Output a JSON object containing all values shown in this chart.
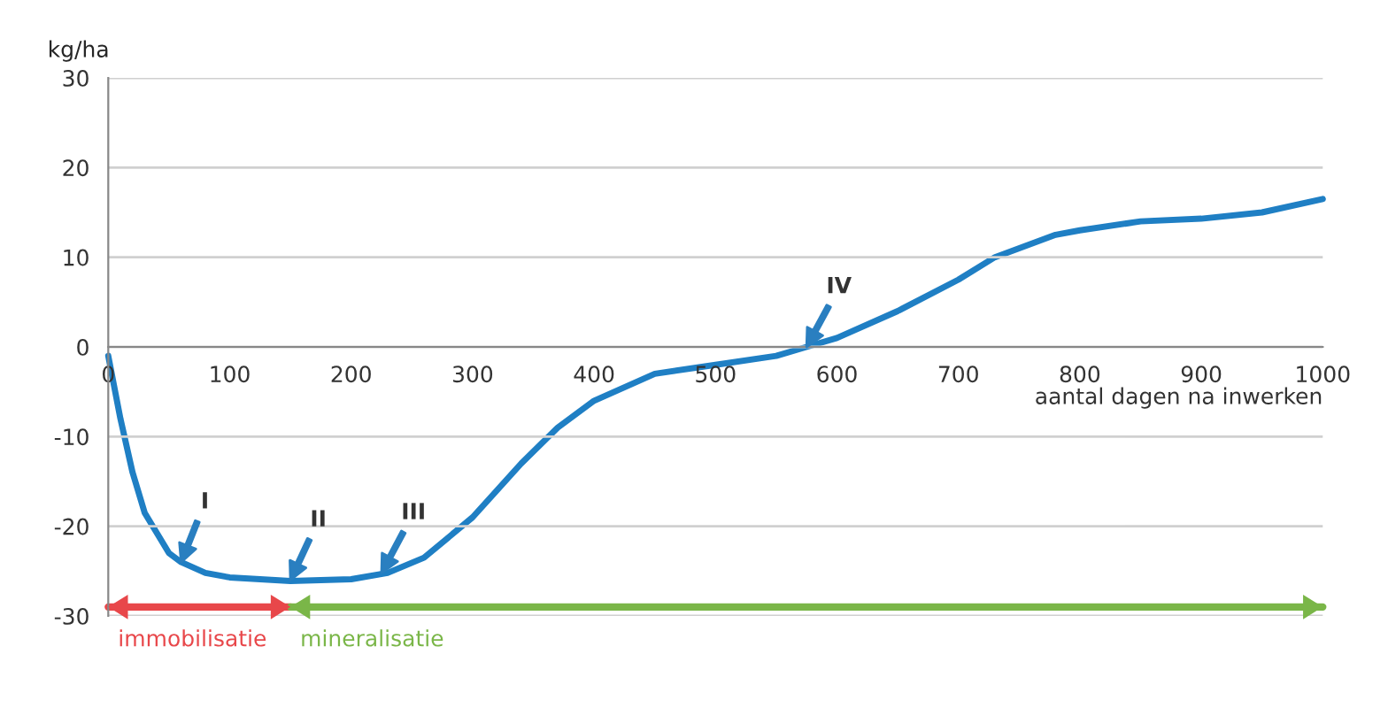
{
  "chart_data": {
    "type": "line",
    "xlabel": "aantal dagen na inwerken",
    "ylabel": "kg/ha",
    "x": [
      0,
      10,
      20,
      30,
      50,
      60,
      80,
      100,
      150,
      200,
      230,
      260,
      300,
      340,
      370,
      400,
      450,
      500,
      550,
      575,
      600,
      650,
      700,
      730,
      780,
      800,
      850,
      900,
      950,
      1000
    ],
    "legend": "bottom left",
    "series": [
      {
        "name": "immobilisatie",
        "color": "#e8474a",
        "x": [
          0,
          150
        ],
        "values": [
          -29,
          -29
        ]
      },
      {
        "name": "mineralisatie",
        "color": "#7ab648",
        "x": [
          150,
          1000
        ],
        "values": [
          -29,
          -29
        ]
      },
      {
        "color": "#1f7fc4",
        "values": [
          -1,
          -8,
          -14,
          -18.5,
          -23,
          -24,
          -25.2,
          -25.7,
          -26.1,
          -25.9,
          -25.2,
          -23.5,
          -19,
          -13,
          -9,
          -6,
          -3,
          -2,
          -1,
          0,
          1,
          4,
          7.5,
          10,
          12.5,
          13,
          14,
          14.3,
          15,
          16.5
        ]
      }
    ],
    "xlim": [
      0,
      1000
    ],
    "xticks": [
      0,
      100,
      200,
      300,
      400,
      500,
      600,
      700,
      800,
      900,
      1000
    ],
    "ylim": [
      -30,
      30
    ],
    "yticks": [
      -30,
      -20,
      -10,
      0,
      10,
      20,
      30
    ],
    "grid": "y",
    "marker": "none",
    "line_style": "solid",
    "annotations": [
      {
        "text": "I",
        "x": 60,
        "y": -24
      },
      {
        "text": "II",
        "x": 150,
        "y": -26
      },
      {
        "text": "III",
        "x": 225,
        "y": -25.2
      },
      {
        "text": "IV",
        "x": 575,
        "y": 0
      }
    ]
  }
}
